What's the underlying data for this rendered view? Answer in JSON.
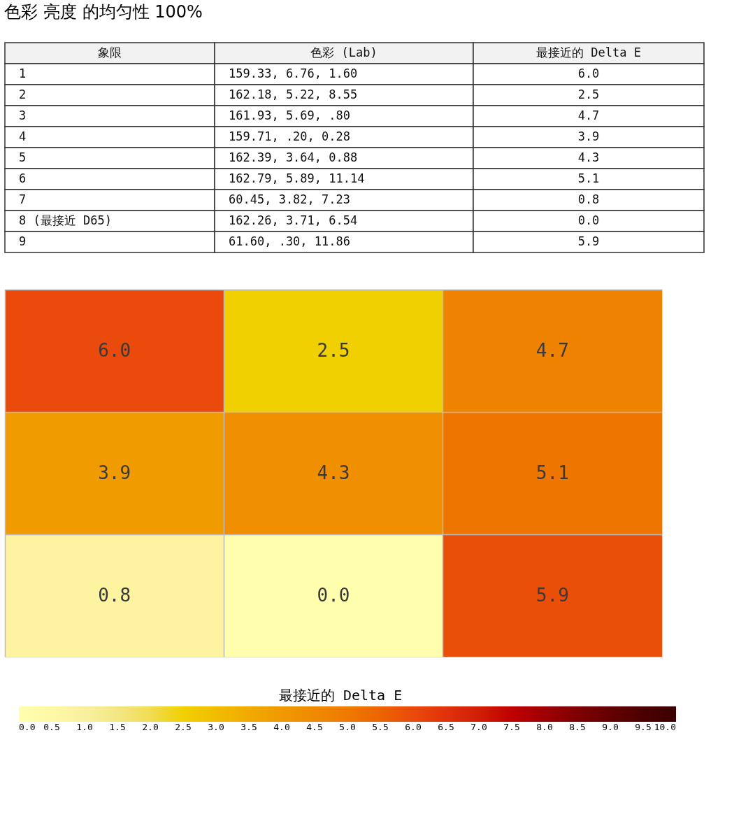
{
  "chart_data": [
    {
      "type": "other",
      "title": "色彩 亮度 的均匀性 100%",
      "annotations": [
        "象限",
        "色彩 (Lab)",
        "最接近的 Delta E",
        "1",
        "159.33,   6.76,   1.60",
        "6.0",
        "2",
        "162.18,   5.22,   8.55",
        "2.5",
        "3",
        "161.93,   5.69,    .80",
        "4.7",
        "4",
        "159.71,    .20,   0.28",
        "3.9",
        "5",
        "162.39,   3.64,   0.88",
        "4.3",
        "6",
        "162.79,   5.89,  11.14",
        "5.1",
        "7",
        " 60.45,   3.82,   7.23",
        "0.8",
        "8 (最接近 D65)",
        "162.26,   3.71,   6.54",
        "0.0",
        "9",
        " 61.60,    .30,  11.86",
        "5.9"
      ]
    },
    {
      "type": "heatmap",
      "categories": [
        null,
        null,
        null
      ],
      "y_categories": [
        null,
        null,
        null
      ],
      "cells": [
        [
          6.0,
          2.5,
          4.7
        ],
        [
          3.9,
          4.3,
          5.1
        ],
        [
          0.8,
          0.0,
          5.9
        ]
      ],
      "cell_labels": [
        [
          "6.0",
          "2.5",
          "4.7"
        ],
        [
          "3.9",
          "4.3",
          "5.1"
        ],
        [
          "0.8",
          "0.0",
          "5.9"
        ]
      ],
      "data_labels": true,
      "grid": true,
      "tick_labels": false,
      "clabel": "最接近的 Delta E",
      "clim": [
        0,
        10
      ],
      "cticks": [
        {
          "value": 0,
          "label": "0.0"
        },
        {
          "value": 0.5,
          "label": "0.5"
        },
        {
          "value": 1,
          "label": "1.0"
        },
        {
          "value": 1.5,
          "label": "1.5"
        },
        {
          "value": 2,
          "label": "2.0"
        },
        {
          "value": 2.5,
          "label": "2.5"
        },
        {
          "value": 3,
          "label": "3.0"
        },
        {
          "value": 3.5,
          "label": "3.5"
        },
        {
          "value": 4,
          "label": "4.0"
        },
        {
          "value": 4.5,
          "label": "4.5"
        },
        {
          "value": 5,
          "label": "5.0"
        },
        {
          "value": 5.5,
          "label": "5.5"
        },
        {
          "value": 6,
          "label": "6.0"
        },
        {
          "value": 6.5,
          "label": "6.5"
        },
        {
          "value": 7,
          "label": "7.0"
        },
        {
          "value": 7.5,
          "label": "7.5"
        },
        {
          "value": 8,
          "label": "8.0"
        },
        {
          "value": 8.5,
          "label": "8.5"
        },
        {
          "value": 9,
          "label": "9.0"
        },
        {
          "value": 9.5,
          "label": "9.5"
        },
        {
          "value": 10,
          "label": "10.0"
        }
      ]
    }
  ]
}
